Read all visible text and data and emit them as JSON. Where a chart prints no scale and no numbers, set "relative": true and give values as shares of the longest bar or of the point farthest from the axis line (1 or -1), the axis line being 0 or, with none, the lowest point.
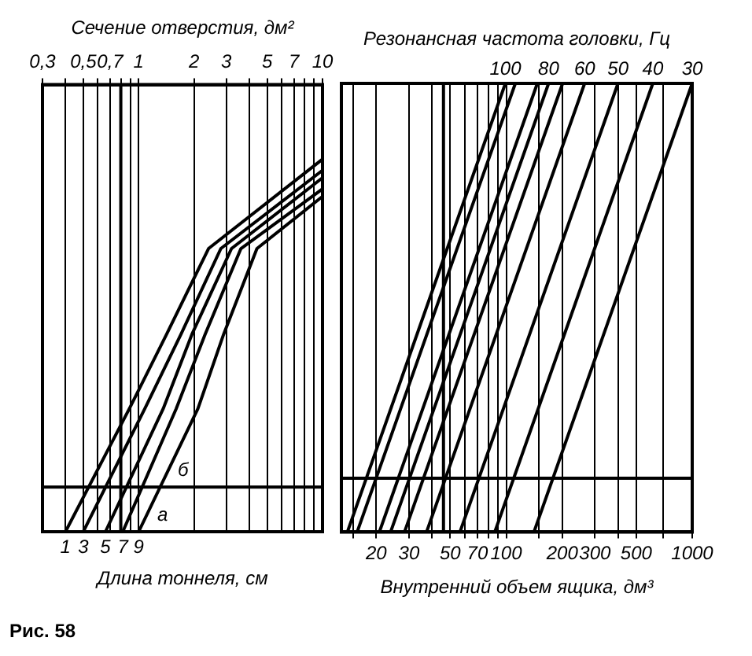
{
  "chart_data": [
    {
      "type": "line",
      "xlabel": "Сечение отверстия, дм²",
      "legend_title": "Длина тоннеля, см",
      "relative": true,
      "log": "x",
      "grid": "x",
      "legend": "bottom",
      "xlim": [
        0.3,
        10
      ],
      "xticks": [
        {
          "value": 0.3,
          "label": "0,3"
        },
        {
          "value": 0.4,
          "label": null
        },
        {
          "value": 0.5,
          "label": "0,5"
        },
        {
          "value": 0.6,
          "label": null
        },
        {
          "value": 0.7,
          "label": "0,7"
        },
        {
          "value": 0.8,
          "label": null
        },
        {
          "value": 0.9,
          "label": null
        },
        1,
        2,
        3,
        {
          "value": 4,
          "label": null
        },
        5,
        {
          "value": 6,
          "label": null
        },
        7,
        {
          "value": 8,
          "label": null
        },
        {
          "value": 9,
          "label": null
        },
        10
      ],
      "series": [
        {
          "name": "1",
          "color": "#000000",
          "x": [
            0.4,
            0.89,
            1.42,
            2.4,
            10
          ],
          "values": [
            0,
            0.33,
            0.53,
            0.76,
            1
          ]
        },
        {
          "name": "3",
          "color": "#000000",
          "x": [
            0.5,
            1.08,
            1.7,
            2.8,
            10
          ],
          "values": [
            0,
            0.33,
            0.53,
            0.76,
            0.97
          ]
        },
        {
          "name": "5",
          "color": "#000000",
          "x": [
            0.66,
            1.36,
            1.95,
            3.2,
            10
          ],
          "values": [
            0,
            0.33,
            0.53,
            0.76,
            0.95
          ]
        },
        {
          "name": "7",
          "color": "#000000",
          "x": [
            0.82,
            1.6,
            2.3,
            3.6,
            10
          ],
          "values": [
            0,
            0.33,
            0.53,
            0.76,
            0.92
          ]
        },
        {
          "name": "9",
          "color": "#000000",
          "x": [
            1.0,
            2.1,
            2.9,
            4.4,
            10
          ],
          "values": [
            0,
            0.33,
            0.53,
            0.76,
            0.9
          ]
        }
      ],
      "ref_lines": [
        {
          "axis": "x",
          "value": 0.8,
          "color": "#000000"
        },
        {
          "axis": "y",
          "value": 0.12,
          "color": "#000000"
        }
      ],
      "annotations": [
        {
          "text": "а",
          "x": 1.19,
          "y": 0.03
        },
        {
          "text": "б",
          "x": 1.54,
          "y": 0.15
        },
        "Рис. 58"
      ]
    },
    {
      "type": "line",
      "xlabel": "Внутренний объем ящика, дм³",
      "legend_title": "Резонансная частота головки, Гц",
      "relative": true,
      "log": "x",
      "grid": "x",
      "legend": "top",
      "xlim": [
        13,
        1000
      ],
      "xticks": [
        {
          "value": 15,
          "label": null
        },
        20,
        30,
        {
          "value": 40,
          "label": null
        },
        50,
        {
          "value": 60,
          "label": null
        },
        70,
        {
          "value": 80,
          "label": null
        },
        {
          "value": 90,
          "label": null
        },
        100,
        {
          "value": 150,
          "label": null
        },
        200,
        300,
        {
          "value": 400,
          "label": null
        },
        500,
        {
          "value": 700,
          "label": null
        },
        1000
      ],
      "series": [
        {
          "name": "100",
          "color": "#000000",
          "x": [
            14.0,
            99
          ],
          "values": [
            0,
            1
          ]
        },
        {
          "color": "#000000",
          "x": [
            15.8,
            112
          ],
          "values": [
            0,
            1
          ]
        },
        {
          "color": "#000000",
          "x": [
            20.8,
            147
          ],
          "values": [
            0,
            1
          ]
        },
        {
          "name": "80",
          "color": "#000000",
          "x": [
            23.9,
            169
          ],
          "values": [
            0,
            1
          ]
        },
        {
          "color": "#000000",
          "x": [
            28.4,
            201
          ],
          "values": [
            0,
            1
          ]
        },
        {
          "name": "60",
          "color": "#000000",
          "x": [
            37.3,
            264
          ],
          "values": [
            0,
            1
          ]
        },
        {
          "name": "50",
          "color": "#000000",
          "x": [
            56.4,
            399
          ],
          "values": [
            0,
            1
          ]
        },
        {
          "name": "40",
          "color": "#000000",
          "x": [
            86.8,
            614
          ],
          "values": [
            0,
            1
          ]
        },
        {
          "name": "30",
          "color": "#000000",
          "x": [
            141,
            1000
          ],
          "values": [
            0,
            1
          ]
        }
      ],
      "ref_lines": [
        {
          "axis": "x",
          "value": 46,
          "color": "#000000"
        },
        {
          "axis": "y",
          "value": 0.12,
          "color": "#000000"
        }
      ]
    }
  ]
}
